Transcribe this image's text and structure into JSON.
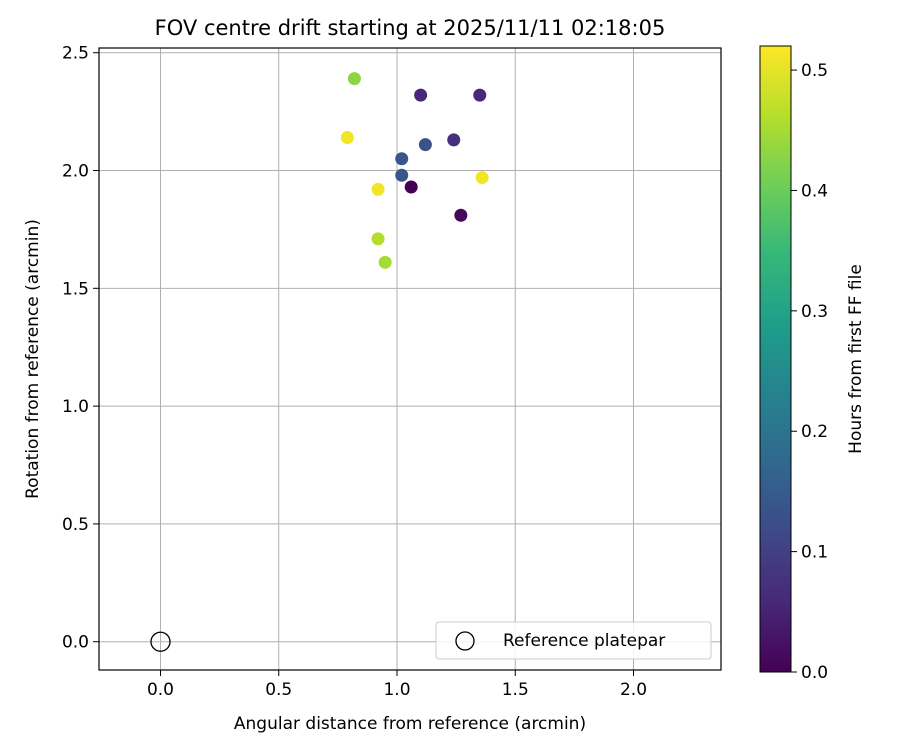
{
  "chart_data": {
    "type": "scatter",
    "title": "FOV centre drift starting at 2025/11/11 02:18:05",
    "xlabel": "Angular distance from reference (arcmin)",
    "ylabel": "Rotation from reference (arcmin)",
    "xlim": [
      -0.26,
      2.37
    ],
    "ylim": [
      -0.12,
      2.52
    ],
    "xticks": [
      0.0,
      0.5,
      1.0,
      1.5,
      2.0
    ],
    "xtick_labels": [
      "0.0",
      "0.5",
      "1.0",
      "1.5",
      "2.0"
    ],
    "yticks": [
      0.0,
      0.5,
      1.0,
      1.5,
      2.0,
      2.5
    ],
    "ytick_labels": [
      "0.0",
      "0.5",
      "1.0",
      "1.5",
      "2.0",
      "2.5"
    ],
    "grid": true,
    "series": [
      {
        "name": "FOV centre drift",
        "points": [
          {
            "x": 1.06,
            "y": 1.93,
            "hours": 0.0
          },
          {
            "x": 1.27,
            "y": 1.81,
            "hours": 0.01
          },
          {
            "x": 1.1,
            "y": 2.32,
            "hours": 0.06
          },
          {
            "x": 1.35,
            "y": 2.32,
            "hours": 0.06
          },
          {
            "x": 1.24,
            "y": 2.13,
            "hours": 0.07
          },
          {
            "x": 1.12,
            "y": 2.11,
            "hours": 0.13
          },
          {
            "x": 1.02,
            "y": 2.05,
            "hours": 0.14
          },
          {
            "x": 1.02,
            "y": 1.98,
            "hours": 0.14
          },
          {
            "x": 0.82,
            "y": 2.39,
            "hours": 0.43
          },
          {
            "x": 0.92,
            "y": 1.71,
            "hours": 0.46
          },
          {
            "x": 0.95,
            "y": 1.61,
            "hours": 0.45
          },
          {
            "x": 0.79,
            "y": 2.14,
            "hours": 0.51
          },
          {
            "x": 0.92,
            "y": 1.92,
            "hours": 0.51
          },
          {
            "x": 1.36,
            "y": 1.97,
            "hours": 0.51
          }
        ]
      }
    ],
    "reference_point": {
      "x": 0.0,
      "y": 0.0,
      "label": "Reference platepar"
    },
    "legend": {
      "position": "lower right",
      "entries": [
        "Reference platepar"
      ]
    },
    "colorbar": {
      "label": "Hours from first FF file",
      "colormap": "viridis",
      "range": [
        0.0,
        0.52
      ],
      "ticks": [
        0.0,
        0.1,
        0.2,
        0.3,
        0.4,
        0.5
      ],
      "tick_labels": [
        "0.0",
        "0.1",
        "0.2",
        "0.3",
        "0.4",
        "0.5"
      ]
    }
  }
}
